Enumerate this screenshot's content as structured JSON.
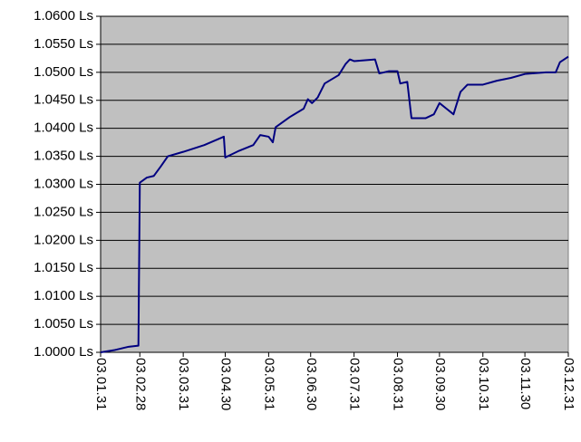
{
  "chart_data": {
    "type": "line",
    "x": [
      "03.01.31",
      "03.02.10",
      "03.02.20",
      "03.02.27",
      "03.02.28",
      "03.03.05",
      "03.03.10",
      "03.03.15",
      "03.03.20",
      "03.03.31",
      "03.04.15",
      "03.04.29",
      "03.04.30",
      "03.05.10",
      "03.05.20",
      "03.05.25",
      "03.05.31",
      "03.06.03",
      "03.06.05",
      "03.06.15",
      "03.06.25",
      "03.06.28",
      "03.07.01",
      "03.07.05",
      "03.07.10",
      "03.07.20",
      "03.07.25",
      "03.07.28",
      "03.07.31",
      "03.08.15",
      "03.08.18",
      "03.08.25",
      "03.08.31",
      "03.09.02",
      "03.09.07",
      "03.09.10",
      "03.09.20",
      "03.09.26",
      "03.09.30",
      "03.10.05",
      "03.10.10",
      "03.10.15",
      "03.10.20",
      "03.10.31",
      "03.11.10",
      "03.11.20",
      "03.11.30",
      "03.12.15",
      "03.12.22",
      "03.12.25",
      "03.12.31"
    ],
    "series": [
      {
        "color": "#000080",
        "values": [
          1.0,
          1.0004,
          1.001,
          1.0012,
          1.0303,
          1.0312,
          1.0315,
          1.0332,
          1.035,
          1.0358,
          1.037,
          1.0385,
          1.0348,
          1.036,
          1.037,
          1.0388,
          1.0385,
          1.0375,
          1.0402,
          1.042,
          1.0435,
          1.0452,
          1.0445,
          1.0455,
          1.048,
          1.0495,
          1.0515,
          1.0523,
          1.052,
          1.0523,
          1.0498,
          1.0502,
          1.0502,
          1.048,
          1.0483,
          1.0418,
          1.0418,
          1.0425,
          1.0445,
          1.0435,
          1.0425,
          1.0465,
          1.0478,
          1.0478,
          1.0485,
          1.049,
          1.0497,
          1.05,
          1.05,
          1.0518,
          1.0528
        ]
      }
    ],
    "xlim": [
      "03.01.31",
      "03.12.31"
    ],
    "xticks": [
      "03.01.31",
      "03.02.28",
      "03.03.31",
      "03.04.30",
      "03.05.31",
      "03.06.30",
      "03.07.31",
      "03.08.31",
      "03.09.30",
      "03.10.31",
      "03.11.30",
      "03.12.31"
    ],
    "ylim": [
      1.0,
      1.06
    ],
    "yticks": [
      {
        "value": 1.0,
        "label": "1.0000 Ls"
      },
      {
        "value": 1.005,
        "label": "1.0050 Ls"
      },
      {
        "value": 1.01,
        "label": "1.0100 Ls"
      },
      {
        "value": 1.015,
        "label": "1.0150 Ls"
      },
      {
        "value": 1.02,
        "label": "1.0200 Ls"
      },
      {
        "value": 1.025,
        "label": "1.0250 Ls"
      },
      {
        "value": 1.03,
        "label": "1.0300 Ls"
      },
      {
        "value": 1.035,
        "label": "1.0350 Ls"
      },
      {
        "value": 1.04,
        "label": "1.0400 Ls"
      },
      {
        "value": 1.045,
        "label": "1.0450 Ls"
      },
      {
        "value": 1.05,
        "label": "1.0500 Ls"
      },
      {
        "value": 1.055,
        "label": "1.0550 Ls"
      },
      {
        "value": 1.06,
        "label": "1.0600 Ls"
      }
    ],
    "grid": true,
    "plot_background": "#c0c0c0"
  }
}
